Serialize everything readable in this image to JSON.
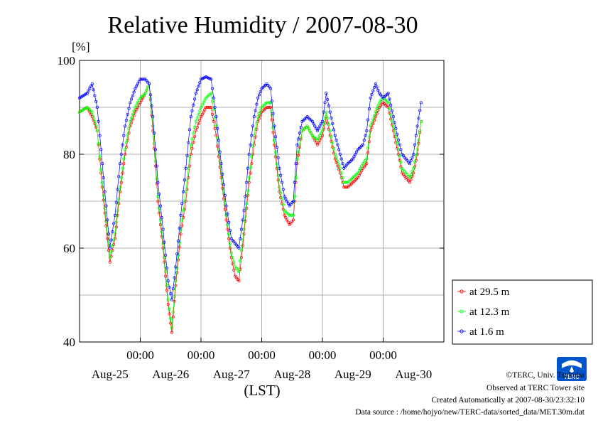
{
  "chart_data": {
    "type": "line",
    "title": "Relative Humidity / 2007-08-30",
    "yunit": "[%]",
    "xlabel": "(LST)",
    "ylim": [
      40,
      100
    ],
    "y_ticks": [
      40,
      60,
      80,
      100
    ],
    "x_range_hours": [
      0,
      144
    ],
    "x_ticks": [
      {
        "time": "00:00",
        "date": "Aug-25"
      },
      {
        "time": "00:00",
        "date": "Aug-26"
      },
      {
        "time": "00:00",
        "date": "Aug-27"
      },
      {
        "time": "00:00",
        "date": "Aug-28"
      },
      {
        "time": "00:00",
        "date": "Aug-29"
      },
      {
        "time": "00:00",
        "date": "Aug-30"
      }
    ],
    "grid": true,
    "legend_position": "right",
    "series": [
      {
        "name": "at 29.5 m",
        "color": "#ff0000",
        "points": [
          [
            0,
            89
          ],
          [
            3,
            90
          ],
          [
            5,
            88
          ],
          [
            7,
            85
          ],
          [
            9,
            73
          ],
          [
            11,
            62
          ],
          [
            12,
            57
          ],
          [
            14,
            62
          ],
          [
            16,
            72
          ],
          [
            18,
            80
          ],
          [
            20,
            86
          ],
          [
            22,
            89
          ],
          [
            24,
            91
          ],
          [
            26,
            93
          ],
          [
            27.5,
            95
          ],
          [
            29,
            85
          ],
          [
            31,
            70
          ],
          [
            33,
            60
          ],
          [
            35,
            48
          ],
          [
            36.5,
            42
          ],
          [
            38,
            52
          ],
          [
            40,
            63
          ],
          [
            42,
            70
          ],
          [
            44,
            80
          ],
          [
            46,
            85
          ],
          [
            48,
            88
          ],
          [
            50,
            90
          ],
          [
            52,
            90
          ],
          [
            54,
            84
          ],
          [
            56,
            75
          ],
          [
            58,
            66
          ],
          [
            60,
            58
          ],
          [
            61.5,
            54
          ],
          [
            63,
            53
          ],
          [
            65,
            63
          ],
          [
            67,
            74
          ],
          [
            69,
            82
          ],
          [
            70.5,
            87
          ],
          [
            72,
            89
          ],
          [
            74,
            90
          ],
          [
            75.5,
            90
          ],
          [
            77,
            82
          ],
          [
            79,
            72
          ],
          [
            81,
            67
          ],
          [
            83,
            65
          ],
          [
            84.5,
            66
          ],
          [
            86,
            78
          ],
          [
            88,
            85
          ],
          [
            90,
            86
          ],
          [
            92,
            84
          ],
          [
            94,
            82
          ],
          [
            96,
            84
          ],
          [
            97.5,
            88
          ],
          [
            99,
            84
          ],
          [
            101,
            79
          ],
          [
            103,
            76
          ],
          [
            104.5,
            73
          ],
          [
            106,
            73
          ],
          [
            108,
            74
          ],
          [
            110,
            75
          ],
          [
            112,
            77
          ],
          [
            113.5,
            78
          ],
          [
            115,
            85
          ],
          [
            117,
            88
          ],
          [
            118.5,
            90
          ],
          [
            120,
            91
          ],
          [
            122,
            90
          ],
          [
            124,
            85
          ],
          [
            126,
            80
          ],
          [
            127.5,
            76
          ],
          [
            129,
            75
          ],
          [
            130.5,
            74
          ],
          [
            132,
            76
          ],
          [
            133.5,
            80
          ],
          [
            135,
            87
          ]
        ]
      },
      {
        "name": "at 12.3 m",
        "color": "#00ff00",
        "points": [
          [
            0,
            89
          ],
          [
            3,
            90
          ],
          [
            5,
            89
          ],
          [
            7,
            85
          ],
          [
            9,
            74
          ],
          [
            11,
            63
          ],
          [
            12,
            58
          ],
          [
            14,
            63
          ],
          [
            16,
            73
          ],
          [
            18,
            81
          ],
          [
            20,
            87
          ],
          [
            22,
            90
          ],
          [
            24,
            92
          ],
          [
            26,
            93
          ],
          [
            27.5,
            95
          ],
          [
            29,
            86
          ],
          [
            31,
            71
          ],
          [
            33,
            61
          ],
          [
            35,
            49
          ],
          [
            36.5,
            43
          ],
          [
            38,
            53
          ],
          [
            40,
            64
          ],
          [
            42,
            72
          ],
          [
            44,
            82
          ],
          [
            46,
            87
          ],
          [
            48,
            90
          ],
          [
            50,
            92
          ],
          [
            52,
            93
          ],
          [
            54,
            86
          ],
          [
            56,
            76
          ],
          [
            58,
            67
          ],
          [
            60,
            59
          ],
          [
            61.5,
            56
          ],
          [
            63,
            55
          ],
          [
            65,
            64
          ],
          [
            67,
            75
          ],
          [
            69,
            84
          ],
          [
            70.5,
            88
          ],
          [
            72,
            90
          ],
          [
            74,
            91
          ],
          [
            75.5,
            91
          ],
          [
            77,
            83
          ],
          [
            79,
            73
          ],
          [
            81,
            68
          ],
          [
            83,
            67
          ],
          [
            84.5,
            67
          ],
          [
            86,
            79
          ],
          [
            88,
            85
          ],
          [
            90,
            86
          ],
          [
            92,
            84
          ],
          [
            94,
            83
          ],
          [
            96,
            85
          ],
          [
            97.5,
            89
          ],
          [
            99,
            85
          ],
          [
            101,
            80
          ],
          [
            103,
            77
          ],
          [
            104.5,
            74
          ],
          [
            106,
            74
          ],
          [
            108,
            75
          ],
          [
            110,
            76
          ],
          [
            112,
            78
          ],
          [
            113.5,
            79
          ],
          [
            115,
            86
          ],
          [
            117,
            89
          ],
          [
            118.5,
            91
          ],
          [
            120,
            92
          ],
          [
            122,
            91
          ],
          [
            124,
            86
          ],
          [
            126,
            81
          ],
          [
            127.5,
            77
          ],
          [
            129,
            76
          ],
          [
            130.5,
            75
          ],
          [
            132,
            77
          ],
          [
            133.5,
            81
          ],
          [
            135,
            87
          ]
        ]
      },
      {
        "name": "at 1.6 m",
        "color": "#0000ff",
        "points": [
          [
            0,
            92
          ],
          [
            3,
            93
          ],
          [
            5,
            95
          ],
          [
            7,
            90
          ],
          [
            9,
            78
          ],
          [
            11,
            66
          ],
          [
            12,
            60
          ],
          [
            14,
            67
          ],
          [
            16,
            78
          ],
          [
            18,
            86
          ],
          [
            20,
            91
          ],
          [
            22,
            94
          ],
          [
            24,
            96
          ],
          [
            26,
            96
          ],
          [
            27.5,
            95
          ],
          [
            29,
            88
          ],
          [
            31,
            74
          ],
          [
            33,
            64
          ],
          [
            35,
            53
          ],
          [
            36.5,
            49
          ],
          [
            38,
            56
          ],
          [
            40,
            67
          ],
          [
            42,
            77
          ],
          [
            44,
            88
          ],
          [
            46,
            93
          ],
          [
            48,
            96
          ],
          [
            50,
            96.5
          ],
          [
            52,
            96
          ],
          [
            54,
            88
          ],
          [
            56,
            78
          ],
          [
            58,
            69
          ],
          [
            60,
            62
          ],
          [
            61.5,
            61
          ],
          [
            63,
            60
          ],
          [
            65,
            68
          ],
          [
            67,
            80
          ],
          [
            69,
            88
          ],
          [
            70.5,
            92
          ],
          [
            72,
            94
          ],
          [
            74,
            95
          ],
          [
            75.5,
            94
          ],
          [
            77,
            86
          ],
          [
            79,
            77
          ],
          [
            81,
            71
          ],
          [
            83,
            69
          ],
          [
            84.5,
            70
          ],
          [
            86,
            82
          ],
          [
            88,
            87
          ],
          [
            90,
            88
          ],
          [
            92,
            87
          ],
          [
            94,
            85
          ],
          [
            96,
            87
          ],
          [
            97.5,
            93
          ],
          [
            99,
            89
          ],
          [
            101,
            84
          ],
          [
            103,
            80
          ],
          [
            104.5,
            77
          ],
          [
            106,
            78
          ],
          [
            108,
            79
          ],
          [
            110,
            81
          ],
          [
            112,
            82
          ],
          [
            113.5,
            85
          ],
          [
            115,
            92
          ],
          [
            117,
            95
          ],
          [
            118.5,
            93
          ],
          [
            120,
            92
          ],
          [
            122,
            93
          ],
          [
            124,
            88
          ],
          [
            126,
            83
          ],
          [
            127.5,
            80
          ],
          [
            129,
            79
          ],
          [
            130.5,
            78
          ],
          [
            132,
            80
          ],
          [
            133.5,
            86
          ],
          [
            135,
            91
          ]
        ]
      }
    ]
  },
  "footer": {
    "copyright": "©TERC, Univ. Tsukuba",
    "observed": "Observed at TERC Tower site",
    "created": "Created Automatically at 2007-08-30/23:32:10",
    "source": "Data source : /home/hojyo/new/TERC-data/sorted_data/MET.30m.dat"
  },
  "logo": {
    "text": "TERC",
    "color": "#0055cc"
  }
}
